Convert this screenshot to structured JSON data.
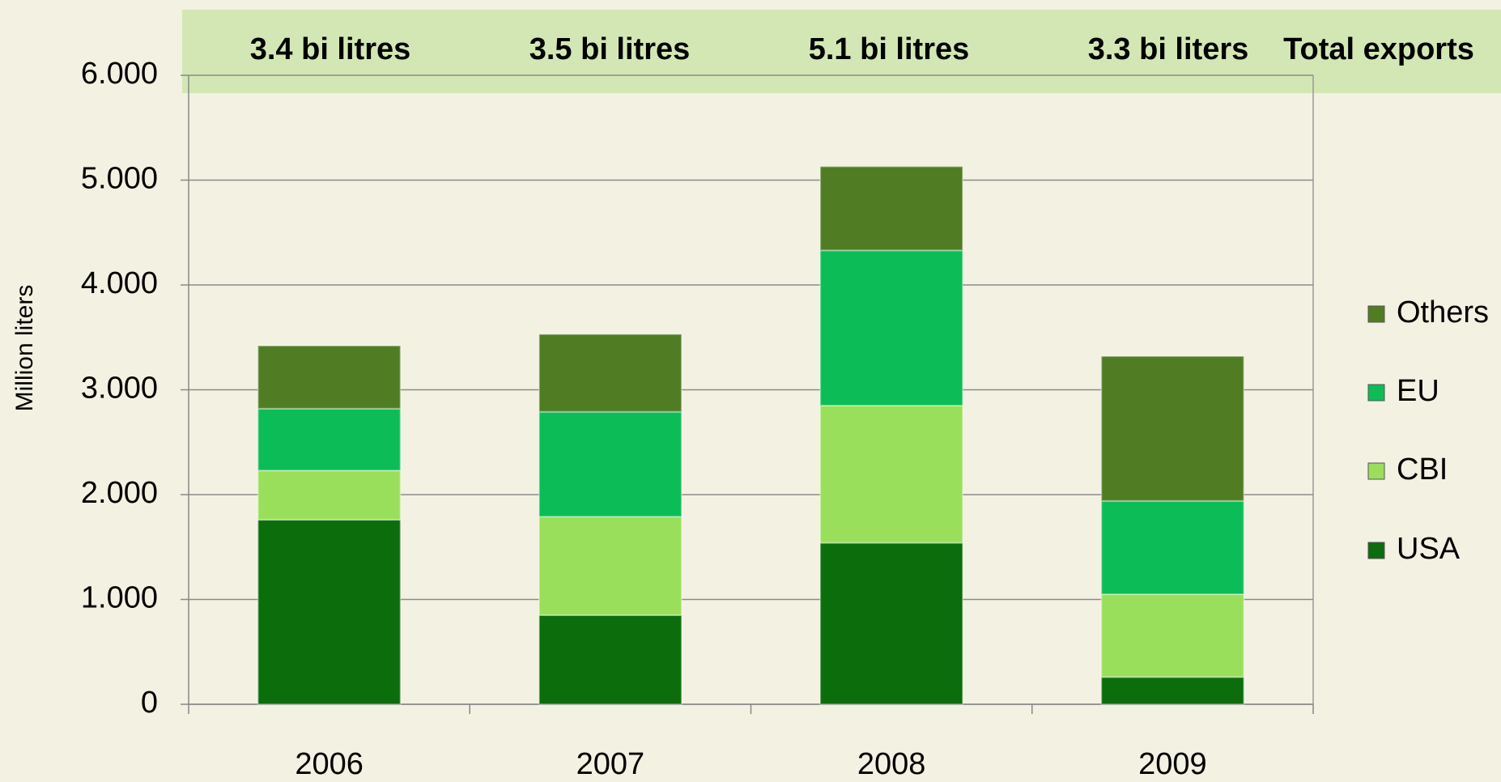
{
  "chart_data": {
    "type": "stacked_bar",
    "y_label": "Million liters",
    "annotations": [
      "3.4 bi litres",
      "3.5 bi litres",
      "5.1 bi litres",
      "3.3 bi liters",
      "Total exports"
    ],
    "categories": [
      "2006",
      "2007",
      "2008",
      "2009"
    ],
    "series": [
      {
        "name": "USA",
        "color": "#0b6d0b",
        "values": [
          1760,
          850,
          1540,
          260
        ]
      },
      {
        "name": "CBI",
        "color": "#9adf5b",
        "values": [
          470,
          940,
          1310,
          790
        ]
      },
      {
        "name": "EU",
        "color": "#0cbd57",
        "values": [
          590,
          1000,
          1480,
          890
        ]
      },
      {
        "name": "Others",
        "color": "#507d24",
        "values": [
          600,
          740,
          800,
          1380
        ]
      }
    ],
    "ylim": [
      0,
      6000
    ],
    "yticks": [
      0,
      {
        "value": 1000,
        "label": "1.000"
      },
      {
        "value": 2000,
        "label": "2.000"
      },
      {
        "value": 3000,
        "label": "3.000"
      },
      {
        "value": 4000,
        "label": "4.000"
      },
      {
        "value": 5000,
        "label": "5.000"
      },
      {
        "value": 6000,
        "label": "6.000"
      }
    ],
    "grid": true,
    "legend": "right"
  }
}
